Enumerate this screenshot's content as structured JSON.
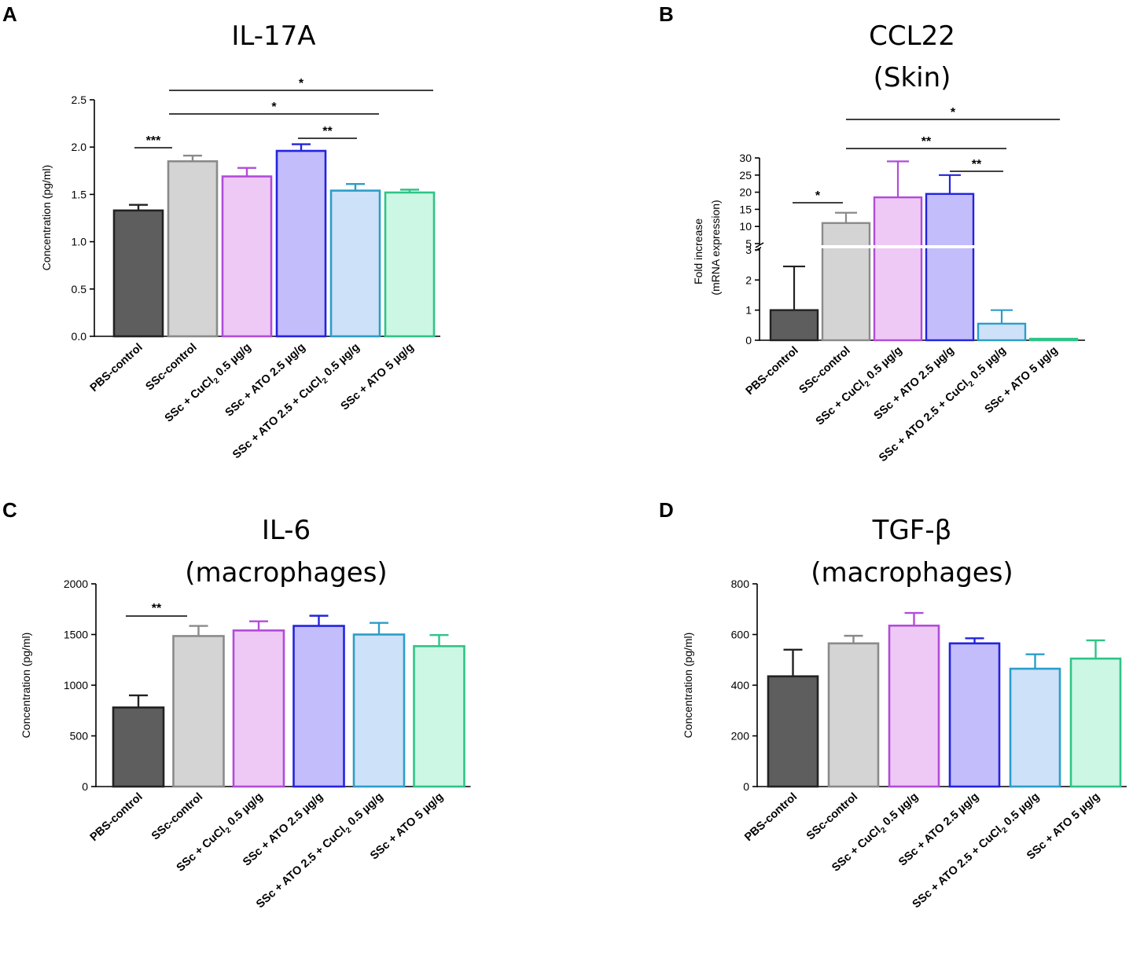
{
  "figure": {
    "panels": [
      "A",
      "B",
      "C",
      "D"
    ]
  },
  "chart_data": [
    {
      "type": "bar",
      "panel": "A",
      "title": "IL-17A",
      "subtitle": "",
      "ylabel": "Concentration (pg/ml)",
      "xlabel": "",
      "ylim": [
        0,
        2.5
      ],
      "yticks": [
        "0.0",
        "0.5",
        "1.0",
        "1.5",
        "2.0",
        "2.5"
      ],
      "categories": [
        "PBS-control",
        "SSc-control",
        "SSc + CuCl2 0.5 µg/g",
        "SSc + ATO 2.5 µg/g",
        "SSc + ATO 2.5 + CuCl2 0.5 µg/g",
        "SSc + ATO 5 µg/g"
      ],
      "values": [
        1.33,
        1.85,
        1.69,
        1.96,
        1.54,
        1.52
      ],
      "errors": [
        0.06,
        0.06,
        0.09,
        0.07,
        0.07,
        0.03
      ],
      "fills": [
        "#5e5e5e",
        "#d4d4d4",
        "#efc9f5",
        "#c3bdfb",
        "#cde1f8",
        "#cbf7e4"
      ],
      "strokes": [
        "#222222",
        "#8a8a8a",
        "#b14cd9",
        "#2323e0",
        "#2c9dc9",
        "#2fc486"
      ],
      "significance": [
        {
          "from": 0,
          "to": 1,
          "label": "***"
        },
        {
          "from": 3,
          "to": 4,
          "label": "**"
        },
        {
          "from": 1,
          "to": 4,
          "label": "*"
        },
        {
          "from": 1,
          "to": 5,
          "label": "*"
        }
      ]
    },
    {
      "type": "bar",
      "panel": "B",
      "title": "CCL22",
      "subtitle": "(Skin)",
      "ylabel": "Fold increase",
      "ylabel2": "(mRNA expression)",
      "xlabel": "",
      "axis_break": true,
      "ylim_lower": [
        0,
        3
      ],
      "ylim_upper": [
        5,
        30
      ],
      "yticks_lower": [
        "0",
        "1",
        "2",
        "3"
      ],
      "yticks_upper": [
        "5",
        "10",
        "15",
        "20",
        "25",
        "30"
      ],
      "categories": [
        "PBS-control",
        "SSc-control",
        "SSc + CuCl2 0.5 µg/g",
        "SSc + ATO 2.5 µg/g",
        "SSc + ATO 2.5 + CuCl2 0.5 µg/g",
        "SSc + ATO 5 µg/g"
      ],
      "values": [
        1.0,
        11.0,
        18.5,
        19.5,
        0.55,
        0.05
      ],
      "errors": [
        1.45,
        3.0,
        10.5,
        5.5,
        0.45,
        0.0
      ],
      "fills": [
        "#5e5e5e",
        "#d4d4d4",
        "#efc9f5",
        "#c3bdfb",
        "#cde1f8",
        "#cbf7e4"
      ],
      "strokes": [
        "#222222",
        "#8a8a8a",
        "#b14cd9",
        "#2323e0",
        "#2c9dc9",
        "#2fc486"
      ],
      "significance": [
        {
          "from": 0,
          "to": 1,
          "label": "*"
        },
        {
          "from": 3,
          "to": 4,
          "label": "**"
        },
        {
          "from": 1,
          "to": 4,
          "label": "**"
        },
        {
          "from": 1,
          "to": 5,
          "label": "*"
        }
      ]
    },
    {
      "type": "bar",
      "panel": "C",
      "title": "IL-6",
      "subtitle": "(macrophages)",
      "ylabel": "Concentration (pg/ml)",
      "xlabel": "",
      "ylim": [
        0,
        2000
      ],
      "yticks": [
        "0",
        "500",
        "1000",
        "1500",
        "2000"
      ],
      "categories": [
        "PBS-control",
        "SSc-control",
        "SSc + CuCl2 0.5 µg/g",
        "SSc + ATO 2.5 µg/g",
        "SSc + ATO 2.5 + CuCl2 0.5 µg/g",
        "SSc + ATO 5 µg/g"
      ],
      "values": [
        780,
        1485,
        1540,
        1585,
        1500,
        1385
      ],
      "errors": [
        120,
        100,
        90,
        100,
        115,
        110
      ],
      "fills": [
        "#5e5e5e",
        "#d4d4d4",
        "#efc9f5",
        "#c3bdfb",
        "#cde1f8",
        "#cbf7e4"
      ],
      "strokes": [
        "#222222",
        "#8a8a8a",
        "#b14cd9",
        "#2323e0",
        "#2c9dc9",
        "#2fc486"
      ],
      "significance": [
        {
          "from": 0,
          "to": 1,
          "label": "**"
        }
      ]
    },
    {
      "type": "bar",
      "panel": "D",
      "title": "TGF-β",
      "subtitle": "(macrophages)",
      "ylabel": "Concentration (pg/ml)",
      "xlabel": "",
      "ylim": [
        0,
        800
      ],
      "yticks": [
        "0",
        "200",
        "400",
        "600",
        "800"
      ],
      "categories": [
        "PBS-control",
        "SSc-control",
        "SSc + CuCl2 0.5 µg/g",
        "SSc + ATO 2.5 µg/g",
        "SSc + ATO 2.5 + CuCl2 0.5 µg/g",
        "SSc + ATO 5 µg/g"
      ],
      "values": [
        435,
        565,
        635,
        565,
        465,
        505
      ],
      "errors": [
        105,
        30,
        50,
        20,
        57,
        72
      ],
      "fills": [
        "#5e5e5e",
        "#d4d4d4",
        "#efc9f5",
        "#c3bdfb",
        "#cde1f8",
        "#cbf7e4"
      ],
      "strokes": [
        "#222222",
        "#8a8a8a",
        "#b14cd9",
        "#2323e0",
        "#2c9dc9",
        "#2fc486"
      ],
      "significance": []
    }
  ]
}
